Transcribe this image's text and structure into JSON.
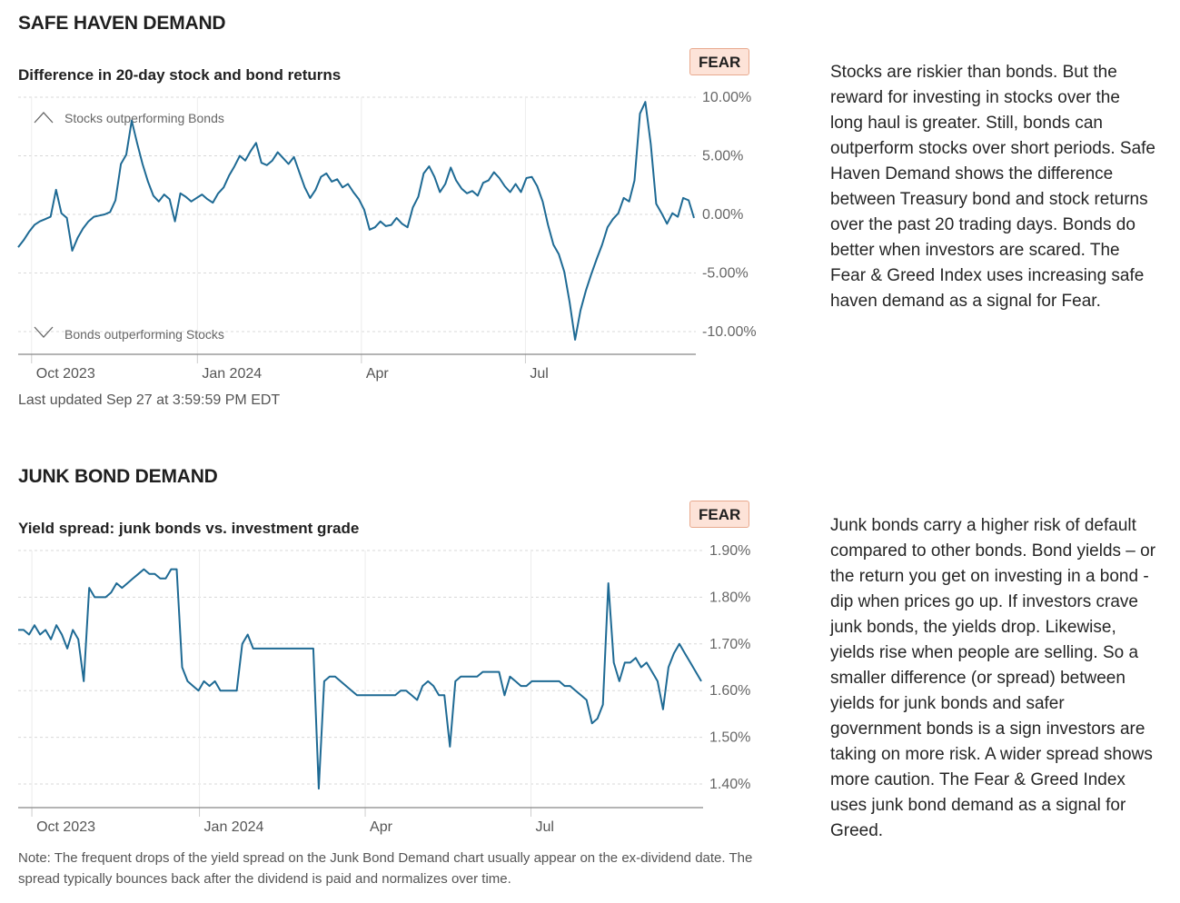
{
  "colors": {
    "line": "#1e6a94",
    "grid": "#d8d8d8",
    "axis": "#888888",
    "badge_bg": "#fde3d8",
    "badge_border": "#e8a98e"
  },
  "safe_haven": {
    "title": "SAFE HAVEN DEMAND",
    "badge": "FEAR",
    "description": "Stocks are riskier than bonds. But the reward for investing in stocks over the long haul is greater. Still, bonds can outperform stocks over short periods. Safe Haven Demand shows the difference between Treasury bond and stock returns over the past 20 trading days. Bonds do better when investors are scared. The Fear & Greed Index uses increasing safe haven demand as a signal for Fear.",
    "updated": "Last updated Sep 27 at 3:59:59 PM EDT"
  },
  "junk_bond": {
    "title": "JUNK BOND DEMAND",
    "badge": "FEAR",
    "description": "Junk bonds carry a higher risk of default compared to other bonds. Bond yields – or the return you get on investing in a bond - dip when prices go up. If investors crave junk bonds, the yields drop. Likewise, yields rise when people are selling. So a smaller difference (or spread) between yields for junk bonds and safer government bonds is a sign investors are taking on more risk. A wider spread shows more caution. The Fear & Greed Index uses junk bond demand as a signal for Greed.",
    "note": "Note: The frequent drops of the yield spread on the Junk Bond Demand chart usually appear on the ex-dividend date. The spread typically bounces back after the dividend is paid and normalizes over time."
  },
  "chart_data": [
    {
      "type": "line",
      "title": "Difference in 20-day stock and bond returns",
      "ylabel": "",
      "xlabel": "",
      "y_unit": "%",
      "ylim": [
        -12,
        10
      ],
      "yticks": [
        10,
        5,
        0,
        -5,
        -10
      ],
      "ytick_labels": [
        "10.00%",
        "5.00%",
        "0.00%",
        "-5.00%",
        "-10.00%"
      ],
      "x_unit": "days since 2023-09-18",
      "xlim": [
        0,
        376
      ],
      "xticks": [
        13,
        105,
        196,
        287
      ],
      "xtick_labels": [
        "Oct 2023",
        "Jan 2024",
        "Apr",
        "Jul"
      ],
      "annotations": {
        "top": "Stocks outperforming Bonds",
        "bottom": "Bonds outperforming Stocks"
      },
      "x": [
        0,
        3,
        6,
        9,
        12,
        15,
        18,
        21,
        24,
        27,
        30,
        33,
        36,
        39,
        42,
        45,
        48,
        51,
        54,
        57,
        60,
        63,
        66,
        69,
        72,
        75,
        78,
        81,
        84,
        87,
        90,
        93,
        96,
        99,
        102,
        105,
        108,
        111,
        114,
        117,
        120,
        123,
        126,
        129,
        132,
        135,
        138,
        141,
        144,
        147,
        150,
        153,
        156,
        159,
        162,
        165,
        168,
        171,
        174,
        177,
        180,
        183,
        186,
        189,
        192,
        195,
        198,
        201,
        204,
        207,
        210,
        213,
        216,
        219,
        222,
        225,
        228,
        231,
        234,
        237,
        240,
        243,
        246,
        249,
        252,
        255,
        258,
        261,
        264,
        267,
        270,
        273,
        276,
        279,
        282,
        285,
        288,
        291,
        294,
        297,
        300,
        303,
        306,
        309,
        312,
        315,
        318,
        321,
        324,
        327,
        330,
        333,
        336,
        339,
        342,
        345,
        348,
        351,
        354,
        357,
        360,
        363,
        366,
        369,
        372,
        375
      ],
      "values": [
        -2.8,
        -2.2,
        -1.5,
        -0.9,
        -0.6,
        -0.4,
        -0.2,
        2.1,
        0.1,
        -0.3,
        -3.1,
        -2.0,
        -1.2,
        -0.6,
        -0.2,
        -0.1,
        0.0,
        0.2,
        1.2,
        4.3,
        5.1,
        8.0,
        6.1,
        4.3,
        2.8,
        1.6,
        1.1,
        1.7,
        1.3,
        -0.6,
        1.8,
        1.5,
        1.1,
        1.4,
        1.7,
        1.3,
        1.0,
        1.8,
        2.3,
        3.3,
        4.1,
        5.0,
        4.6,
        5.4,
        6.1,
        4.4,
        4.2,
        4.6,
        5.3,
        4.8,
        4.3,
        4.9,
        3.6,
        2.3,
        1.4,
        2.1,
        3.2,
        3.5,
        2.8,
        3.0,
        2.3,
        2.6,
        1.9,
        1.3,
        0.4,
        -1.3,
        -1.1,
        -0.6,
        -1.0,
        -0.9,
        -0.3,
        -0.8,
        -1.1,
        0.6,
        1.5,
        3.5,
        4.1,
        3.2,
        1.9,
        2.6,
        4.0,
        2.9,
        2.2,
        1.8,
        2.0,
        1.6,
        2.7,
        2.9,
        3.6,
        3.1,
        2.4,
        1.9,
        2.6,
        1.9,
        3.1,
        3.2,
        2.4,
        1.1,
        -0.9,
        -2.6,
        -3.4,
        -4.9,
        -7.5,
        -10.7,
        -8.2,
        -6.5,
        -5.1,
        -3.8,
        -2.6,
        -1.1,
        -0.4,
        0.1,
        1.4,
        1.1,
        2.9,
        8.6,
        9.6,
        6.0,
        0.9,
        0.1,
        -0.8,
        0.1,
        -0.2,
        1.4,
        1.2,
        -0.3
      ]
    },
    {
      "type": "line",
      "title": "Yield spread: junk bonds vs. investment grade",
      "ylabel": "",
      "xlabel": "",
      "y_unit": "%",
      "ylim": [
        1.35,
        1.9
      ],
      "yticks": [
        1.9,
        1.8,
        1.7,
        1.6,
        1.5,
        1.4
      ],
      "ytick_labels": [
        "1.90%",
        "1.80%",
        "1.70%",
        "1.60%",
        "1.50%",
        "1.40%"
      ],
      "x_unit": "days since 2023-09-18",
      "xlim": [
        0,
        376
      ],
      "xticks": [
        13,
        105,
        196,
        287
      ],
      "xtick_labels": [
        "Oct 2023",
        "Jan 2024",
        "Apr",
        "Jul"
      ],
      "x": [
        0,
        3,
        6,
        9,
        12,
        15,
        18,
        21,
        24,
        27,
        30,
        33,
        36,
        39,
        42,
        45,
        48,
        51,
        54,
        57,
        60,
        63,
        66,
        69,
        72,
        75,
        78,
        81,
        84,
        87,
        90,
        93,
        96,
        99,
        102,
        105,
        108,
        111,
        114,
        117,
        120,
        123,
        126,
        129,
        132,
        135,
        138,
        141,
        144,
        147,
        150,
        153,
        156,
        159,
        162,
        165,
        168,
        171,
        174,
        177,
        180,
        183,
        186,
        189,
        192,
        195,
        198,
        201,
        204,
        207,
        210,
        213,
        216,
        219,
        222,
        225,
        228,
        231,
        234,
        237,
        240,
        243,
        246,
        249,
        252,
        255,
        258,
        261,
        264,
        267,
        270,
        273,
        276,
        279,
        282,
        285,
        288,
        291,
        294,
        297,
        300,
        303,
        306,
        309,
        312,
        315,
        318,
        321,
        324,
        327,
        330,
        333,
        336,
        339,
        342,
        345,
        348,
        351,
        354,
        357,
        360,
        363,
        366,
        369,
        372,
        375
      ],
      "values": [
        1.73,
        1.73,
        1.72,
        1.74,
        1.72,
        1.73,
        1.71,
        1.74,
        1.72,
        1.69,
        1.73,
        1.71,
        1.62,
        1.82,
        1.8,
        1.8,
        1.8,
        1.81,
        1.83,
        1.82,
        1.83,
        1.84,
        1.85,
        1.86,
        1.85,
        1.85,
        1.84,
        1.84,
        1.86,
        1.86,
        1.65,
        1.62,
        1.61,
        1.6,
        1.62,
        1.61,
        1.62,
        1.6,
        1.6,
        1.6,
        1.6,
        1.7,
        1.72,
        1.69,
        1.69,
        1.69,
        1.69,
        1.69,
        1.69,
        1.69,
        1.69,
        1.69,
        1.69,
        1.69,
        1.69,
        1.39,
        1.62,
        1.63,
        1.63,
        1.62,
        1.61,
        1.6,
        1.59,
        1.59,
        1.59,
        1.59,
        1.59,
        1.59,
        1.59,
        1.59,
        1.6,
        1.6,
        1.59,
        1.58,
        1.61,
        1.62,
        1.61,
        1.59,
        1.59,
        1.48,
        1.62,
        1.63,
        1.63,
        1.63,
        1.63,
        1.64,
        1.64,
        1.64,
        1.64,
        1.59,
        1.63,
        1.62,
        1.61,
        1.61,
        1.62,
        1.62,
        1.62,
        1.62,
        1.62,
        1.62,
        1.61,
        1.61,
        1.6,
        1.59,
        1.58,
        1.53,
        1.54,
        1.57,
        1.83,
        1.66,
        1.62,
        1.66,
        1.66,
        1.67,
        1.65,
        1.66,
        1.64,
        1.62,
        1.56,
        1.65,
        1.68,
        1.7,
        1.68,
        1.66,
        1.64,
        1.62
      ]
    }
  ]
}
